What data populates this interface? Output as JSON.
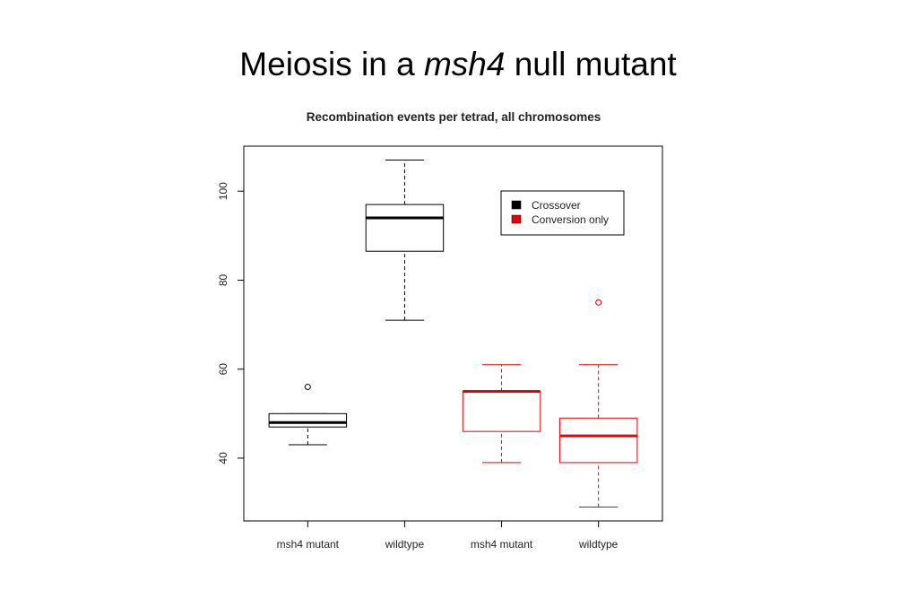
{
  "slide_title": {
    "before": "Meiosis in a",
    "italic": "msh4",
    "after": "null mutant"
  },
  "chart_data": {
    "type": "box",
    "title": "Recombination events per tetrad, all chromosomes",
    "categories": [
      "msh4 mutant",
      "wildtype",
      "msh4 mutant",
      "wildtype"
    ],
    "series": [
      {
        "name": "Crossover",
        "color": "#000000",
        "boxes": [
          {
            "min": 43,
            "q1": 47,
            "median": 48,
            "q3": 50,
            "max": 50,
            "outliers": [
              56
            ]
          },
          {
            "min": 71,
            "q1": 86.5,
            "median": 94,
            "q3": 97,
            "max": 107,
            "outliers": []
          }
        ]
      },
      {
        "name": "Conversion only",
        "color": "#e8000b",
        "boxes": [
          {
            "min": 39,
            "q1": 46,
            "median": 55,
            "q3": 55,
            "max": 61,
            "outliers": []
          },
          {
            "min": 29,
            "q1": 39,
            "median": 45,
            "q3": 49,
            "max": 61,
            "outliers": [
              75
            ]
          }
        ]
      }
    ],
    "ylim": [
      25.88,
      110.12
    ],
    "yticks": [
      40,
      60,
      80,
      100
    ],
    "legend": "top-right"
  }
}
